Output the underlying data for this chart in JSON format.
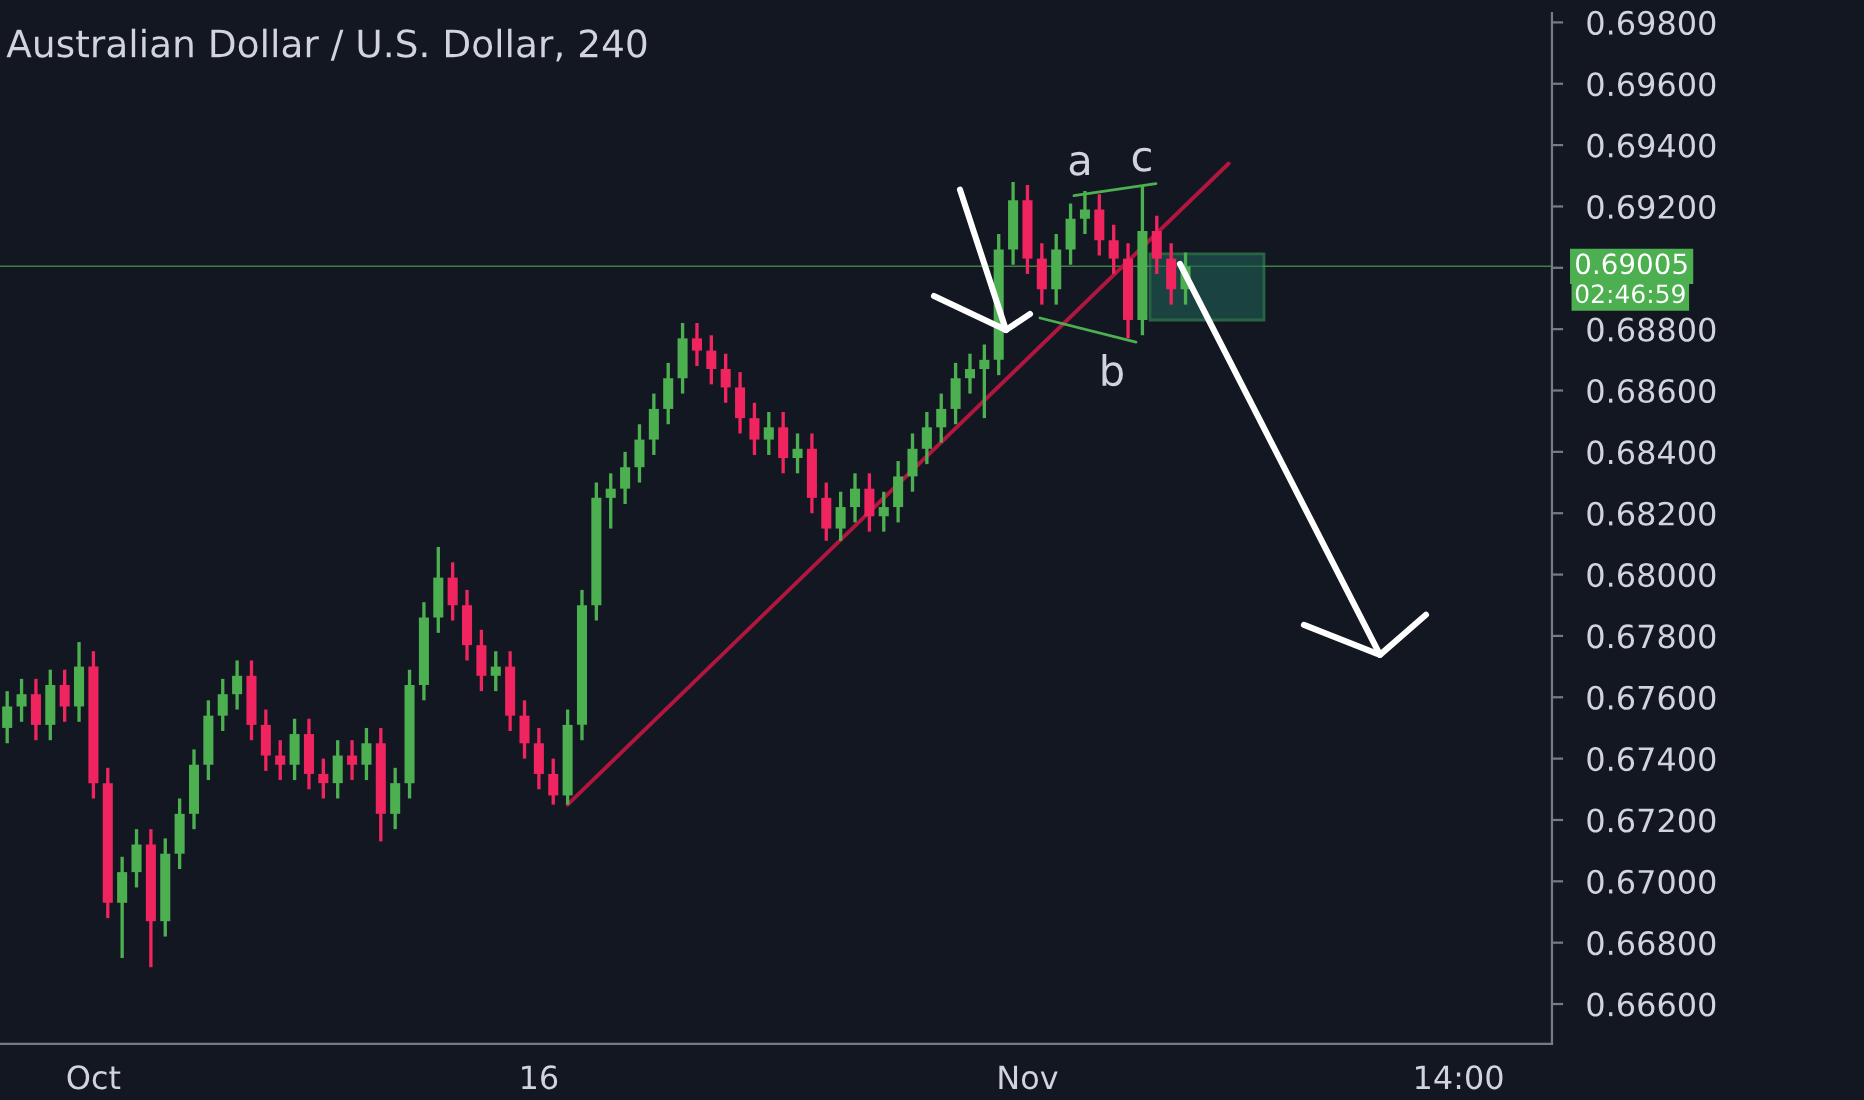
{
  "chart_data": {
    "type": "candlestick",
    "title": "Australian Dollar / U.S. Dollar, 240",
    "categories": [
      null,
      null,
      null,
      null,
      null,
      null,
      "Oct",
      null,
      null,
      null,
      null,
      null,
      null,
      null,
      null,
      null,
      null,
      null,
      null,
      null,
      null,
      null,
      null,
      null,
      null,
      null,
      null,
      null,
      null,
      null,
      null,
      null,
      null,
      null,
      null,
      null,
      null,
      "16",
      null,
      null,
      null,
      null,
      null,
      null,
      null,
      null,
      null,
      null,
      null,
      null,
      null,
      null,
      null,
      null,
      null,
      null,
      null,
      null,
      null,
      null,
      null,
      null,
      null,
      null,
      null,
      null,
      null,
      null,
      null,
      null,
      null,
      "Nov",
      null,
      null,
      null,
      null,
      null,
      null,
      null,
      null,
      null,
      null,
      null,
      null,
      null,
      null,
      null,
      null,
      null,
      null,
      null,
      null,
      null,
      null,
      null,
      null,
      null,
      null,
      null,
      null,
      null,
      "14:00",
      null,
      null,
      null,
      null,
      null,
      null
    ],
    "ohlc": [
      [
        0.675,
        0.6762,
        0.6745,
        0.6757
      ],
      [
        0.6757,
        0.6766,
        0.6752,
        0.6761
      ],
      [
        0.6761,
        0.6766,
        0.6746,
        0.6751
      ],
      [
        0.6751,
        0.6769,
        0.6746,
        0.6764
      ],
      [
        0.6764,
        0.6769,
        0.6752,
        0.6757
      ],
      [
        0.6757,
        0.6778,
        0.6752,
        0.677
      ],
      [
        0.677,
        0.6775,
        0.6727,
        0.6732
      ],
      [
        0.6732,
        0.6737,
        0.6688,
        0.6693
      ],
      [
        0.6693,
        0.6708,
        0.6675,
        0.6703
      ],
      [
        0.6703,
        0.6717,
        0.6698,
        0.6712
      ],
      [
        0.6712,
        0.6717,
        0.6672,
        0.6687
      ],
      [
        0.6687,
        0.6714,
        0.6682,
        0.6709
      ],
      [
        0.6709,
        0.6727,
        0.6704,
        0.6722
      ],
      [
        0.6722,
        0.6743,
        0.6717,
        0.6738
      ],
      [
        0.6738,
        0.6759,
        0.6733,
        0.6754
      ],
      [
        0.6754,
        0.6766,
        0.6749,
        0.6761
      ],
      [
        0.6761,
        0.6772,
        0.6756,
        0.6767
      ],
      [
        0.6767,
        0.6772,
        0.6746,
        0.6751
      ],
      [
        0.6751,
        0.6756,
        0.6736,
        0.6741
      ],
      [
        0.6741,
        0.6746,
        0.6733,
        0.6738
      ],
      [
        0.6738,
        0.6753,
        0.6733,
        0.6748
      ],
      [
        0.6748,
        0.6753,
        0.673,
        0.6735
      ],
      [
        0.6735,
        0.674,
        0.6727,
        0.6732
      ],
      [
        0.6732,
        0.6746,
        0.6727,
        0.6741
      ],
      [
        0.6741,
        0.6746,
        0.6733,
        0.6738
      ],
      [
        0.6738,
        0.675,
        0.6733,
        0.6745
      ],
      [
        0.6745,
        0.675,
        0.6713,
        0.6722
      ],
      [
        0.6722,
        0.6737,
        0.6717,
        0.6732
      ],
      [
        0.6732,
        0.6769,
        0.6727,
        0.6764
      ],
      [
        0.6764,
        0.6791,
        0.6759,
        0.6786
      ],
      [
        0.6786,
        0.6809,
        0.6781,
        0.6799
      ],
      [
        0.6799,
        0.6804,
        0.6785,
        0.679
      ],
      [
        0.679,
        0.6795,
        0.6772,
        0.6777
      ],
      [
        0.6777,
        0.6782,
        0.6762,
        0.6767
      ],
      [
        0.6767,
        0.6775,
        0.6762,
        0.677
      ],
      [
        0.677,
        0.6775,
        0.6749,
        0.6754
      ],
      [
        0.6754,
        0.6759,
        0.674,
        0.6745
      ],
      [
        0.6745,
        0.675,
        0.673,
        0.6735
      ],
      [
        0.6735,
        0.674,
        0.6725,
        0.6728
      ],
      [
        0.6728,
        0.6756,
        0.6725,
        0.6751
      ],
      [
        0.6751,
        0.6795,
        0.6746,
        0.679
      ],
      [
        0.679,
        0.683,
        0.6785,
        0.6825
      ],
      [
        0.6825,
        0.6833,
        0.6815,
        0.6828
      ],
      [
        0.6828,
        0.684,
        0.6823,
        0.6835
      ],
      [
        0.6835,
        0.6849,
        0.683,
        0.6844
      ],
      [
        0.6844,
        0.6859,
        0.6839,
        0.6854
      ],
      [
        0.6854,
        0.6869,
        0.6849,
        0.6864
      ],
      [
        0.6864,
        0.6882,
        0.6859,
        0.6877
      ],
      [
        0.6877,
        0.6882,
        0.6868,
        0.6873
      ],
      [
        0.6873,
        0.6878,
        0.6862,
        0.6867
      ],
      [
        0.6867,
        0.6872,
        0.6856,
        0.6861
      ],
      [
        0.6861,
        0.6866,
        0.6846,
        0.6851
      ],
      [
        0.6851,
        0.6856,
        0.6839,
        0.6844
      ],
      [
        0.6844,
        0.6853,
        0.6839,
        0.6848
      ],
      [
        0.6848,
        0.6853,
        0.6833,
        0.6838
      ],
      [
        0.6838,
        0.6846,
        0.6833,
        0.6841
      ],
      [
        0.6841,
        0.6846,
        0.682,
        0.6825
      ],
      [
        0.6825,
        0.683,
        0.6811,
        0.6815
      ],
      [
        0.6815,
        0.6827,
        0.6811,
        0.6822
      ],
      [
        0.6822,
        0.6833,
        0.6817,
        0.6828
      ],
      [
        0.6828,
        0.6833,
        0.6814,
        0.6819
      ],
      [
        0.6819,
        0.6827,
        0.6814,
        0.6822
      ],
      [
        0.6822,
        0.6837,
        0.6817,
        0.6832
      ],
      [
        0.6832,
        0.6846,
        0.6827,
        0.6841
      ],
      [
        0.6841,
        0.6853,
        0.6836,
        0.6848
      ],
      [
        0.6848,
        0.6859,
        0.6843,
        0.6854
      ],
      [
        0.6854,
        0.6869,
        0.6849,
        0.6864
      ],
      [
        0.6864,
        0.6872,
        0.6859,
        0.6867
      ],
      [
        0.6867,
        0.6875,
        0.6851,
        0.687
      ],
      [
        0.687,
        0.6911,
        0.6865,
        0.6906
      ],
      [
        0.6906,
        0.6928,
        0.6901,
        0.6922
      ],
      [
        0.6922,
        0.6927,
        0.6898,
        0.6903
      ],
      [
        0.6903,
        0.6908,
        0.6888,
        0.6893
      ],
      [
        0.6893,
        0.6911,
        0.6888,
        0.6906
      ],
      [
        0.6906,
        0.6921,
        0.6901,
        0.6916
      ],
      [
        0.6916,
        0.6925,
        0.6911,
        0.6919
      ],
      [
        0.6919,
        0.6924,
        0.6904,
        0.6909
      ],
      [
        0.6909,
        0.6914,
        0.6898,
        0.6903
      ],
      [
        0.6903,
        0.6908,
        0.6877,
        0.6883
      ],
      [
        0.6883,
        0.6927,
        0.6878,
        0.6912
      ],
      [
        0.6912,
        0.6917,
        0.6898,
        0.6903
      ],
      [
        0.6903,
        0.6908,
        0.6888,
        0.6893
      ],
      [
        0.6893,
        0.6905,
        0.6888,
        0.69005
      ],
      null,
      null,
      null,
      null,
      null,
      null,
      null,
      null,
      null,
      null,
      null,
      null,
      null,
      null,
      null,
      null,
      null,
      null,
      null,
      null,
      null,
      null,
      null,
      null,
      null
    ],
    "colors": [
      "#4caf50",
      "#4caf50",
      "#f0245f",
      "#4caf50",
      "#f0245f",
      "#4caf50",
      "#f0245f",
      "#f0245f",
      "#4caf50",
      "#4caf50",
      "#f0245f",
      "#4caf50",
      "#4caf50",
      "#4caf50",
      "#4caf50",
      "#4caf50",
      "#4caf50",
      "#f0245f",
      "#f0245f",
      "#f0245f",
      "#4caf50",
      "#f0245f",
      "#f0245f",
      "#4caf50",
      "#f0245f",
      "#4caf50",
      "#f0245f",
      "#4caf50",
      "#4caf50",
      "#4caf50",
      "#4caf50",
      "#f0245f",
      "#f0245f",
      "#f0245f",
      "#4caf50",
      "#f0245f",
      "#f0245f",
      "#f0245f",
      "#f0245f",
      "#4caf50",
      "#4caf50",
      "#4caf50",
      "#4caf50",
      "#4caf50",
      "#4caf50",
      "#4caf50",
      "#4caf50",
      "#4caf50",
      "#f0245f",
      "#f0245f",
      "#f0245f",
      "#f0245f",
      "#f0245f",
      "#4caf50",
      "#f0245f",
      "#4caf50",
      "#f0245f",
      "#f0245f",
      "#4caf50",
      "#4caf50",
      "#f0245f",
      "#4caf50",
      "#4caf50",
      "#4caf50",
      "#4caf50",
      "#4caf50",
      "#4caf50",
      "#4caf50",
      "#4caf50",
      "#4caf50",
      "#4caf50",
      "#f0245f",
      "#f0245f",
      "#4caf50",
      "#4caf50",
      "#4caf50",
      "#f0245f",
      "#f0245f",
      "#f0245f",
      "#4caf50",
      "#f0245f",
      "#f0245f",
      "#4caf50",
      null,
      null,
      null,
      null,
      null,
      null,
      null,
      null,
      null,
      null,
      null,
      null,
      null,
      null,
      null,
      null,
      null,
      null,
      null,
      null,
      null,
      null,
      null,
      null,
      null
    ],
    "series": [
      {
        "type": "line",
        "values": [
          null,
          null,
          null,
          null,
          null,
          null,
          null,
          null,
          null,
          null,
          null,
          null,
          null,
          null,
          null,
          null,
          null,
          null,
          null,
          null,
          null,
          null,
          null,
          null,
          null,
          null,
          null,
          null,
          null,
          null,
          null,
          null,
          null,
          null,
          null,
          null,
          null,
          null,
          null,
          0.6725,
          null,
          null,
          null,
          null,
          null,
          null,
          null,
          null,
          null,
          null,
          null,
          null,
          null,
          null,
          null,
          null,
          null,
          null,
          null,
          null,
          null,
          null,
          null,
          null,
          null,
          null,
          null,
          null,
          null,
          null,
          null,
          null,
          null,
          null,
          null,
          null,
          null,
          null,
          null,
          null,
          null,
          null,
          null,
          null,
          null,
          0.6934,
          null,
          null,
          null,
          null,
          null,
          null,
          null,
          null,
          null,
          null,
          null,
          null,
          null,
          null,
          null,
          null,
          null,
          null,
          null,
          null,
          null,
          null
        ],
        "color": "#b2163f"
      }
    ],
    "ref_lines": [
      {
        "axis": "y",
        "value": 0.69005,
        "label": "0.69005",
        "color": "#4caf50"
      }
    ],
    "annotations": [
      "a",
      "c",
      "b",
      "02:46:59"
    ],
    "ylim": [
      0.6647,
      0.6983
    ],
    "yticks": [
      {
        "value": 0.666,
        "label": "0.66600"
      },
      {
        "value": 0.668,
        "label": "0.66800"
      },
      {
        "value": 0.67,
        "label": "0.67000"
      },
      {
        "value": 0.672,
        "label": "0.67200"
      },
      {
        "value": 0.674,
        "label": "0.67400"
      },
      {
        "value": 0.676,
        "label": "0.67600"
      },
      {
        "value": 0.678,
        "label": "0.67800"
      },
      {
        "value": 0.68,
        "label": "0.68000"
      },
      {
        "value": 0.682,
        "label": "0.68200"
      },
      {
        "value": 0.684,
        "label": "0.68400"
      },
      {
        "value": 0.686,
        "label": "0.68600"
      },
      {
        "value": 0.688,
        "label": "0.68800"
      },
      {
        "value": 0.69,
        "label": null
      },
      {
        "value": 0.692,
        "label": "0.69200"
      },
      {
        "value": 0.694,
        "label": "0.69400"
      },
      {
        "value": 0.696,
        "label": "0.69600"
      },
      {
        "value": 0.698,
        "label": "0.69800"
      }
    ]
  }
}
